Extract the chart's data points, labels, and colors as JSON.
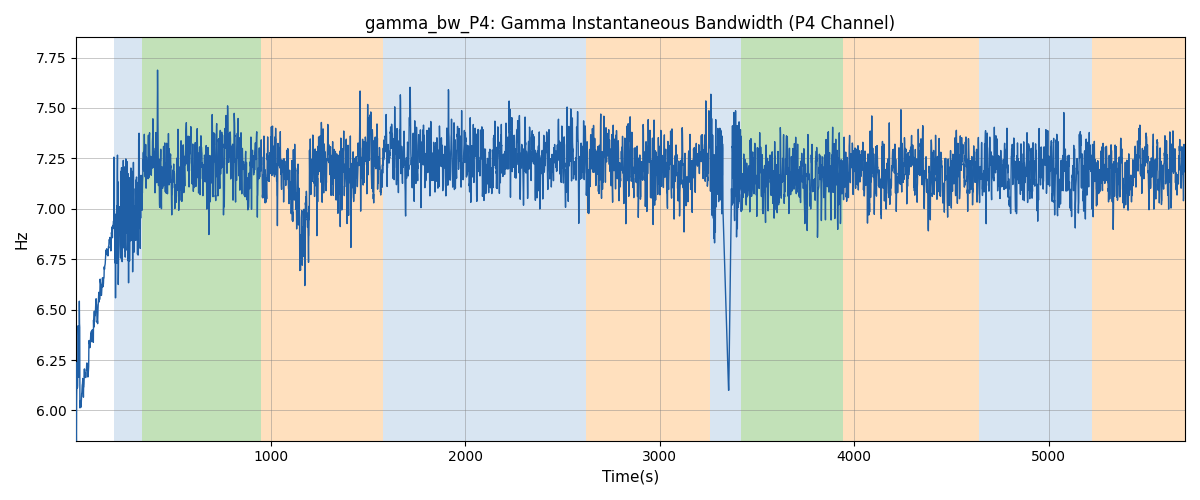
{
  "title": "gamma_bw_P4: Gamma Instantaneous Bandwidth (P4 Channel)",
  "xlabel": "Time(s)",
  "ylabel": "Hz",
  "ylim": [
    5.85,
    7.85
  ],
  "xlim": [
    0,
    5700
  ],
  "yticks": [
    6.0,
    6.25,
    6.5,
    6.75,
    7.0,
    7.25,
    7.5,
    7.75
  ],
  "xticks": [
    1000,
    2000,
    3000,
    4000,
    5000
  ],
  "line_color": "#1f5fa6",
  "line_width": 1.0,
  "bg_bands": [
    {
      "xmin": 195,
      "xmax": 340,
      "color": "#b8d0e8",
      "alpha": 0.55
    },
    {
      "xmin": 340,
      "xmax": 950,
      "color": "#90c97e",
      "alpha": 0.55
    },
    {
      "xmin": 950,
      "xmax": 1580,
      "color": "#ffc88a",
      "alpha": 0.55
    },
    {
      "xmin": 1580,
      "xmax": 2620,
      "color": "#b8d0e8",
      "alpha": 0.55
    },
    {
      "xmin": 2620,
      "xmax": 3260,
      "color": "#ffc88a",
      "alpha": 0.55
    },
    {
      "xmin": 3260,
      "xmax": 3420,
      "color": "#b8d0e8",
      "alpha": 0.55
    },
    {
      "xmin": 3420,
      "xmax": 3940,
      "color": "#90c97e",
      "alpha": 0.55
    },
    {
      "xmin": 3940,
      "xmax": 4640,
      "color": "#ffc88a",
      "alpha": 0.55
    },
    {
      "xmin": 4640,
      "xmax": 5220,
      "color": "#b8d0e8",
      "alpha": 0.55
    },
    {
      "xmin": 5220,
      "xmax": 5700,
      "color": "#ffc88a",
      "alpha": 0.55
    }
  ],
  "seed": 17,
  "n_points": 5700,
  "title_fontsize": 12,
  "fig_width": 12.0,
  "fig_height": 5.0,
  "dpi": 100
}
